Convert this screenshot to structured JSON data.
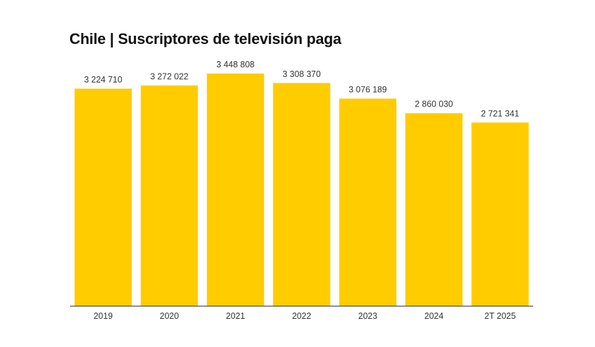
{
  "chart_data": {
    "type": "bar",
    "title": "Chile | Suscriptores de televisión paga",
    "categories": [
      "2019",
      "2020",
      "2021",
      "2022",
      "2023",
      "2024",
      "2T 2025"
    ],
    "values": [
      3224710,
      3272022,
      3448808,
      3308370,
      3076189,
      2860030,
      2721341
    ],
    "value_labels": [
      "3 224 710",
      "3 272 022",
      "3 448 808",
      "3 308 370",
      "3 076 189",
      "2 860 030",
      "2 721 341"
    ],
    "bar_color": "#FFCC00",
    "axis_color": "#333333",
    "ylim": [
      0,
      3448808
    ],
    "xlabel": "",
    "ylabel": "",
    "grid": false,
    "legend": "none"
  }
}
